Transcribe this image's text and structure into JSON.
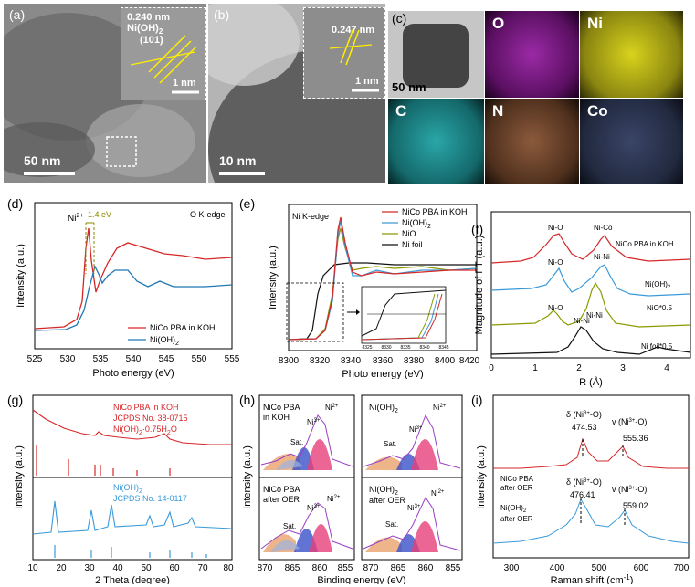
{
  "panel_a": {
    "label": "(a)",
    "inset_spacing": "0.240 nm",
    "inset_phase": "Ni(OH)",
    "inset_phase_sub": "2",
    "inset_plane": "(101)",
    "inset_scale": "1 nm",
    "scale": "50 nm"
  },
  "panel_b": {
    "label": "(b)",
    "inset_spacing": "0.247 nm",
    "inset_scale": "1 nm",
    "scale": "10 nm"
  },
  "panel_c": {
    "label": "(c)",
    "scale": "50 nm",
    "maps": [
      {
        "name": "O",
        "color": "#9b2aa6"
      },
      {
        "name": "Ni",
        "color": "#c9c41a"
      },
      {
        "name": "C",
        "color": "#2aa6a8"
      },
      {
        "name": "N",
        "color": "#8c5a3c"
      },
      {
        "name": "Co",
        "color": "#3a4466"
      }
    ]
  },
  "panel_d": {
    "label": "(d)",
    "edge": "O K-edge",
    "peak_label": "Ni",
    "peak_sup": "2+",
    "shift": "1.4 eV",
    "xlabel": "Photo energy (eV)",
    "ylabel": "Intensity (a.u.)",
    "xticks": [
      "525",
      "530",
      "535",
      "540",
      "545",
      "550",
      "555"
    ],
    "legend": [
      "NiCo PBA in KOH",
      "Ni(OH)"
    ],
    "legend_sub": "2"
  },
  "panel_e": {
    "label": "(e)",
    "edge": "Ni K-edge",
    "xlabel": "Photo energy (eV)",
    "ylabel": "Intensity (a.u.)",
    "xticks": [
      "8300",
      "8320",
      "8340",
      "8360",
      "8380",
      "8400",
      "8420"
    ],
    "inset_xticks": [
      "8325",
      "8330",
      "8335",
      "8340",
      "8345"
    ],
    "legend": [
      "NiCo PBA in KOH",
      "Ni(OH)",
      "NiO",
      "Ni foil"
    ],
    "legend_sub": "2"
  },
  "panel_f": {
    "label": "(f)",
    "xlabel": "R (Å)",
    "ylabel": "Magnitude of FT (a.u.)",
    "xticks": [
      "0",
      "1",
      "2",
      "3",
      "4"
    ],
    "peak_labels": {
      "nio1": "Ni-O",
      "nico": "Ni-Co",
      "nio2": "Ni-O",
      "nini2": "Ni-Ni",
      "nio3": "Ni-O",
      "nini3": "Ni-Ni",
      "nini4": "Ni-Ni"
    },
    "curve_labels": [
      "NiCo PBA in KOH",
      "Ni(OH)",
      "NiO*0.5",
      "Ni foil*0.5"
    ],
    "curve_sub": "2"
  },
  "panel_g": {
    "label": "(g)",
    "xlabel": "2 Theta (degree)",
    "ylabel": "Intensity (a.u.)",
    "xticks": [
      "10",
      "20",
      "30",
      "40",
      "50",
      "60",
      "70",
      "80"
    ],
    "top_legend": [
      "NiCo PBA in KOH",
      "JCPDS No. 38-0715",
      "Ni(OH)",
      "·0.75H",
      "O"
    ],
    "bottom_legend": [
      "Ni(OH)",
      "JCPDS No. 14-0117"
    ],
    "sub2": "2"
  },
  "panel_h": {
    "label": "(h)",
    "xlabel": "Binding energy (eV)",
    "ylabel": "Intensity (a.u.)",
    "xticks": [
      "870",
      "865",
      "860",
      "855"
    ],
    "tl": [
      "NiCo  PBA",
      "in KOH"
    ],
    "tr": "Ni(OH)",
    "bl": [
      "NiCo  PBA",
      "after OER"
    ],
    "br": [
      "Ni(OH)",
      "after OER"
    ],
    "sub2": "2",
    "sat": "Sat.",
    "ni3": "Ni",
    "ni3_sup": "3+",
    "ni2": "Ni",
    "ni2_sup": "2+"
  },
  "panel_i": {
    "label": "(i)",
    "xlabel": "Raman shift (cm",
    "xlabel_sup": "-1",
    "xlabel_end": ")",
    "ylabel": "Intensity (a.u.)",
    "xticks": [
      "300",
      "400",
      "500",
      "600",
      "700"
    ],
    "delta": "δ (Ni",
    "nu": "v (Ni",
    "sup3": "3+",
    "close": "-O)",
    "top_peaks": [
      "474.53",
      "555.36"
    ],
    "top_label": [
      "NiCo  PBA",
      "after OER"
    ],
    "bottom_peaks": [
      "476.41",
      "559.02"
    ],
    "bottom_label": [
      "Ni(OH)",
      "after OER"
    ],
    "sub2": "2"
  }
}
